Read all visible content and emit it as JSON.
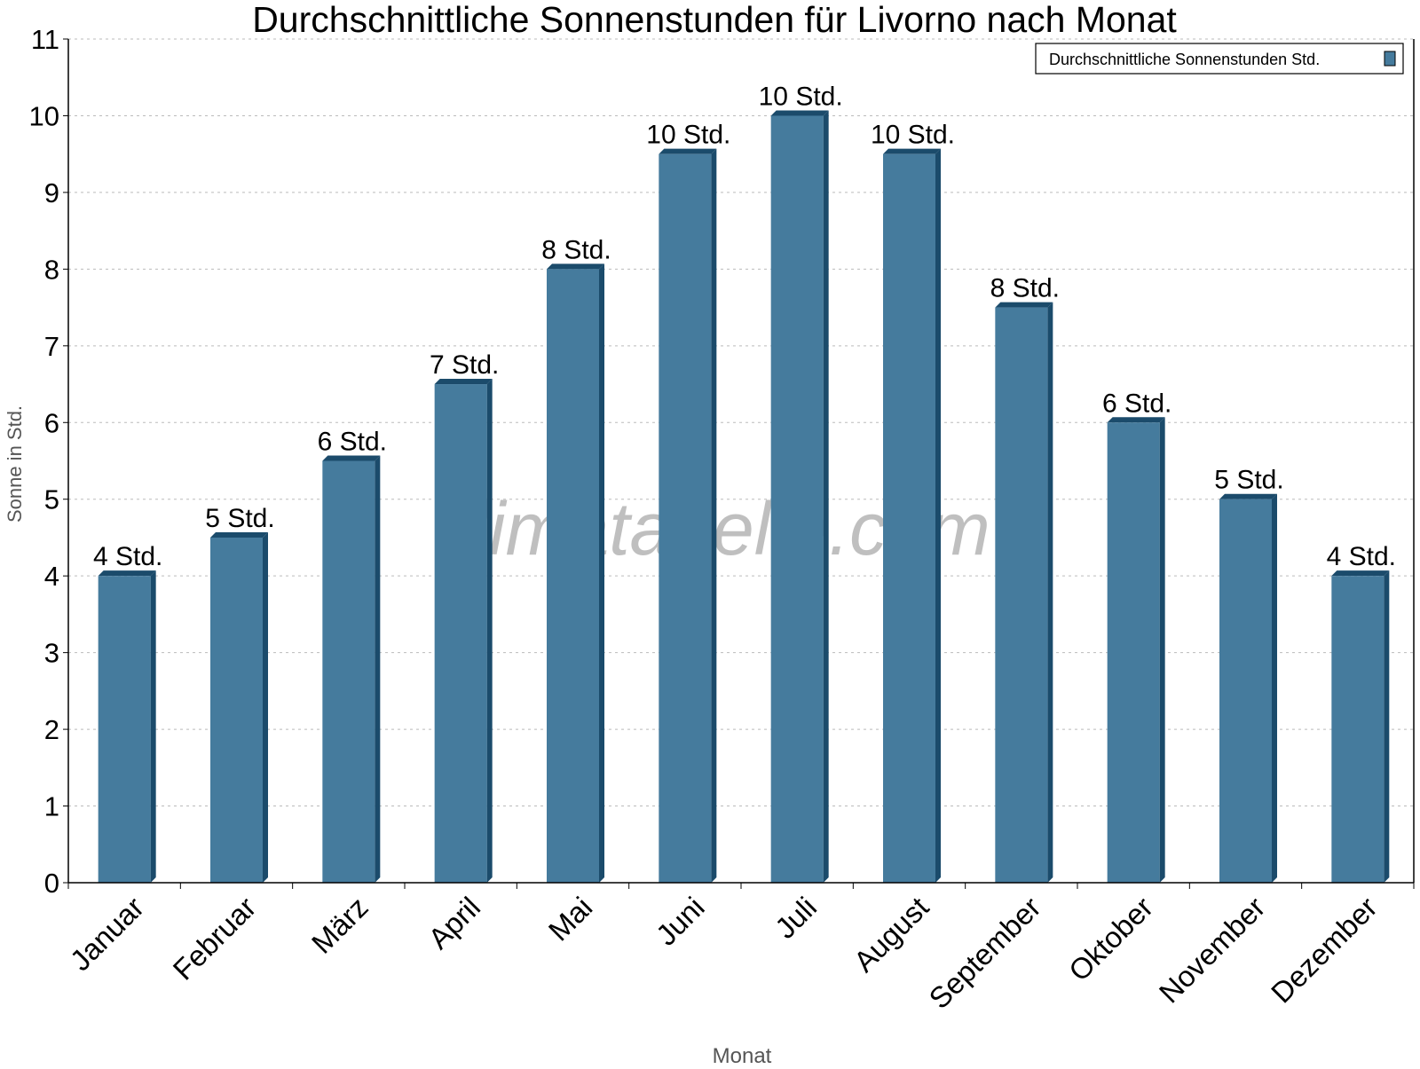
{
  "chart_data": {
    "type": "bar",
    "title": "Durchschnittliche Sonnenstunden für Livorno nach Monat",
    "xlabel": "Monat",
    "ylabel": "Sonne in Std.",
    "ylim": [
      0,
      11
    ],
    "yticks": [
      "0",
      "1",
      "2",
      "3",
      "4",
      "5",
      "6",
      "7",
      "8",
      "9",
      "10",
      "11"
    ],
    "grid": true,
    "legend_position": "top-right",
    "categories": [
      "Januar",
      "Februar",
      "März",
      "April",
      "Mai",
      "Juni",
      "Juli",
      "August",
      "September",
      "Oktober",
      "November",
      "Dezember"
    ],
    "series": [
      {
        "name": "Durchschnittliche Sonnenstunden Std.",
        "color": "#457b9d",
        "side_color": "#1b4b6b",
        "values": [
          4.0,
          4.5,
          5.5,
          6.5,
          8.0,
          9.5,
          10.0,
          9.5,
          7.5,
          6.0,
          5.0,
          4.0
        ],
        "data_labels": [
          "4 Std.",
          "5 Std.",
          "6 Std.",
          "7 Std.",
          "8 Std.",
          "10 Std.",
          "10 Std.",
          "10 Std.",
          "8 Std.",
          "6 Std.",
          "5 Std.",
          "4 Std."
        ]
      }
    ],
    "watermark": "klimatabelle.com"
  }
}
